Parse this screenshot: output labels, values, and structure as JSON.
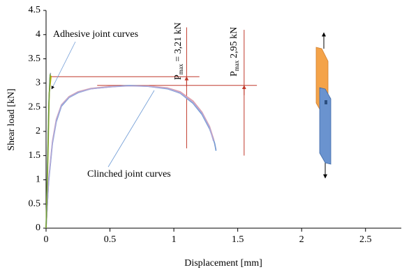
{
  "chart_data": {
    "type": "line",
    "x_label": "Displacement [mm]",
    "y_label": "Shear load [kN]",
    "xlim": [
      0,
      2.78
    ],
    "ylim": [
      0,
      4.5
    ],
    "xticks": [
      0,
      0.5,
      1,
      1.5,
      2,
      2.5
    ],
    "yticks": [
      0,
      0.5,
      1,
      1.5,
      2,
      2.5,
      3,
      3.5,
      4,
      4.5
    ],
    "series": [
      {
        "color": "#e4a0a8",
        "x": [
          0,
          0.02,
          0.05,
          0.08,
          0.12,
          0.18,
          0.25,
          0.35,
          0.5,
          0.65,
          0.8,
          0.95,
          1.05,
          1.15,
          1.22,
          1.28,
          1.31,
          1.33
        ],
        "values": [
          0,
          1.0,
          1.8,
          2.25,
          2.55,
          2.72,
          2.82,
          2.89,
          2.93,
          2.94,
          2.94,
          2.9,
          2.82,
          2.63,
          2.4,
          2.1,
          1.85,
          1.62
        ]
      },
      {
        "color": "#6f9bd6",
        "x": [
          0,
          0.02,
          0.05,
          0.08,
          0.12,
          0.18,
          0.25,
          0.35,
          0.5,
          0.65,
          0.8,
          0.95,
          1.05,
          1.15,
          1.22,
          1.28,
          1.32,
          1.33
        ],
        "values": [
          0,
          0.95,
          1.75,
          2.2,
          2.52,
          2.7,
          2.8,
          2.88,
          2.92,
          2.95,
          2.93,
          2.88,
          2.79,
          2.58,
          2.35,
          2.05,
          1.75,
          1.6
        ]
      },
      {
        "color": "#b0a8d8",
        "x": [
          0,
          0.02,
          0.05,
          0.08,
          0.12,
          0.18,
          0.25,
          0.35,
          0.5,
          0.65,
          0.8,
          0.95,
          1.05,
          1.15,
          1.22,
          1.28,
          1.31
        ],
        "values": [
          0,
          0.98,
          1.78,
          2.23,
          2.54,
          2.71,
          2.81,
          2.88,
          2.92,
          2.94,
          2.93,
          2.89,
          2.8,
          2.6,
          2.38,
          2.08,
          1.8
        ]
      },
      {
        "color": "#9aa0a6",
        "x": [
          0,
          0.01,
          0.02,
          0.03,
          0.035
        ],
        "values": [
          0,
          1.2,
          2.4,
          3.1,
          3.21
        ]
      },
      {
        "color": "#c8b400",
        "x": [
          0,
          0.015,
          0.025,
          0.04
        ],
        "values": [
          0,
          1.5,
          2.8,
          3.15
        ]
      },
      {
        "color": "#70a040",
        "x": [
          0,
          0.012,
          0.022,
          0.032
        ],
        "values": [
          0,
          1.3,
          2.6,
          3.18
        ]
      }
    ],
    "annotations": [
      {
        "text": "Adhesive joint curves"
      },
      {
        "text": "Clinched joint curves"
      },
      {
        "symbol": "P",
        "subscript": "max",
        "text": "= 3,21 kN"
      },
      {
        "symbol": "P",
        "subscript": "max",
        "text": "2,95 kN"
      }
    ],
    "reference_marks": [
      {
        "color": "#c0392b",
        "x": 1.1,
        "y": 3.13,
        "hline_x": [
          0.03,
          1.2
        ],
        "vline_y": [
          1.65,
          4.15
        ]
      },
      {
        "color": "#c0392b",
        "x": 1.55,
        "y": 2.95,
        "hline_x": [
          0.4,
          1.65
        ],
        "vline_y": [
          1.5,
          4.1
        ]
      }
    ]
  }
}
